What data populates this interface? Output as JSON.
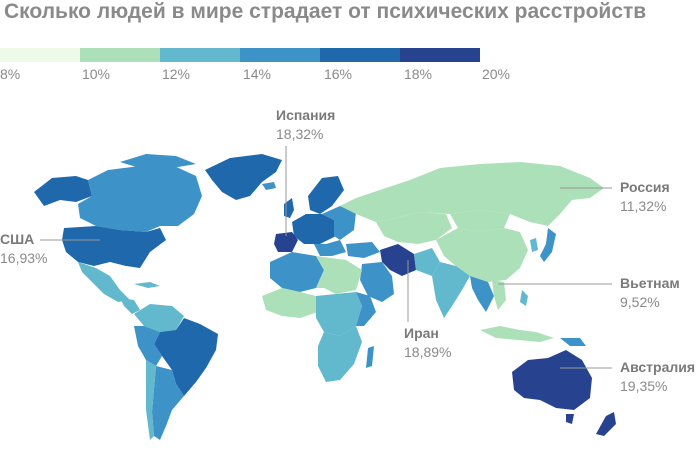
{
  "title": "Сколько людей в мире страдает от психических расстройств",
  "legend": {
    "colors": [
      "#eff9e8",
      "#ace0b8",
      "#62b8cd",
      "#3d92c8",
      "#1f68ac",
      "#27438f"
    ],
    "ticks": [
      "8%",
      "10%",
      "12%",
      "14%",
      "16%",
      "18%",
      "20%"
    ]
  },
  "callouts": [
    {
      "name": "Испания",
      "value": "18,32%"
    },
    {
      "name": "Россия",
      "value": "11,32%"
    },
    {
      "name": "США",
      "value": "16,93%"
    },
    {
      "name": "Вьетнам",
      "value": "9,52%"
    },
    {
      "name": "Иран",
      "value": "18,89%"
    },
    {
      "name": "Австралия",
      "value": "19,35%"
    }
  ],
  "colors": {
    "ocean": "#ffffff",
    "text": "#8a8a8a",
    "leader": "#999999"
  }
}
